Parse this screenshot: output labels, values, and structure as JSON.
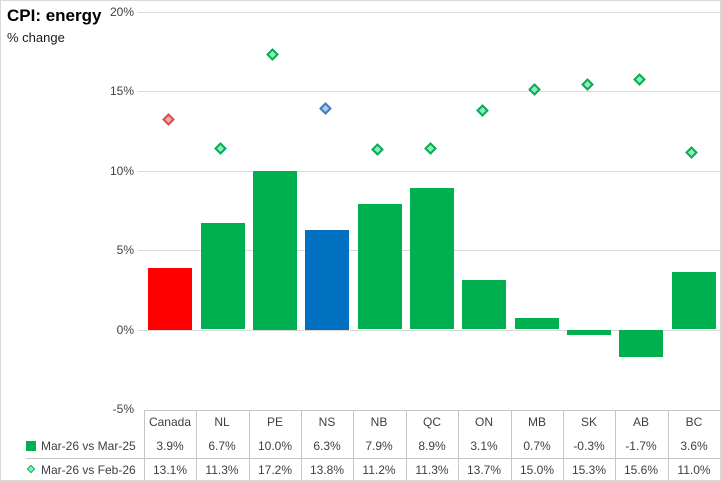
{
  "title": "CPI: energy",
  "subtitle": "% change",
  "chart_data": {
    "type": "bar",
    "title": "CPI: energy",
    "ylabel": "% change",
    "categories": [
      "Canada",
      "NL",
      "PE",
      "NS",
      "NB",
      "QC",
      "ON",
      "MB",
      "SK",
      "AB",
      "BC"
    ],
    "series": [
      {
        "name": "Mar-26 vs Mar-25",
        "type": "bar",
        "values": [
          3.9,
          6.7,
          10.0,
          6.3,
          7.9,
          8.9,
          3.1,
          0.7,
          -0.3,
          -1.7,
          3.6
        ]
      },
      {
        "name": "Mar-26 vs Feb-26",
        "type": "scatter",
        "marker": "diamond",
        "values": [
          13.1,
          11.3,
          17.2,
          13.8,
          11.2,
          11.3,
          13.7,
          15.0,
          15.3,
          15.6,
          11.0
        ]
      }
    ],
    "ylim": [
      -5,
      20
    ],
    "ytick_values": [
      20,
      15,
      10,
      5,
      0,
      -5
    ],
    "ytick_labels": [
      "20%",
      "15%",
      "10%",
      "5%",
      "0%",
      "-5%"
    ],
    "grid": true,
    "legend_position": "bottom-table"
  },
  "table": {
    "header": [
      "Canada",
      "NL",
      "PE",
      "NS",
      "NB",
      "QC",
      "ON",
      "MB",
      "SK",
      "AB",
      "BC"
    ],
    "rows": [
      {
        "legend": "Mar-26 vs Mar-25",
        "marker": "square",
        "cells": [
          "3.9%",
          "6.7%",
          "10.0%",
          "6.3%",
          "7.9%",
          "8.9%",
          "3.1%",
          "0.7%",
          "-0.3%",
          "-1.7%",
          "3.6%"
        ]
      },
      {
        "legend": "Mar-26 vs Feb-26",
        "marker": "diamond",
        "cells": [
          "13.1%",
          "11.3%",
          "17.2%",
          "13.8%",
          "11.2%",
          "11.3%",
          "13.7%",
          "15.0%",
          "15.3%",
          "15.6%",
          "11.0%"
        ]
      }
    ]
  },
  "colors": {
    "bar_default": "#00B050",
    "bar_overrides": {
      "Canada": "#FF0000",
      "NS": "#0070C0"
    },
    "marker_default": {
      "fill": "#8BEFB4",
      "border": "#0CA95A"
    },
    "marker_overrides": {
      "Canada": {
        "fill": "#F4A6A6",
        "border": "#E04A4E"
      },
      "NS": {
        "fill": "#A6CBEF",
        "border": "#3C7DC8"
      }
    },
    "gridline": "#d9d9d9",
    "table_line": "#c6c6c6"
  }
}
